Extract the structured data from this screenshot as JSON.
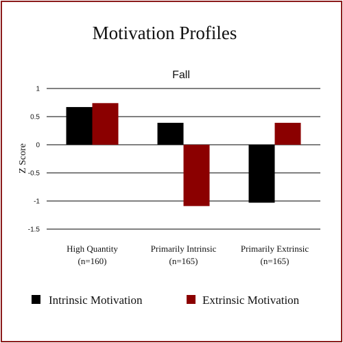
{
  "chart_data": {
    "type": "bar",
    "title": "Motivation Profiles",
    "subtitle": "Fall",
    "xlabel": "",
    "ylabel": "Z Score",
    "ylim": [
      -1.5,
      1
    ],
    "yticks": [
      1,
      0.5,
      0,
      -0.5,
      -1,
      -1.5
    ],
    "ytick_labels": [
      "1",
      "0.5",
      "0",
      "-0.5",
      "-1",
      "-1.5"
    ],
    "grid": true,
    "legend_position": "bottom",
    "categories": [
      {
        "line1": "High Quantity",
        "line2": "(n=160)"
      },
      {
        "line1": "Primarily Intrinsic",
        "line2": "(n=165)"
      },
      {
        "line1": "Primarily Extrinsic",
        "line2": "(n=165)"
      }
    ],
    "series": [
      {
        "name": "Intrinsic Motivation",
        "color": "#000000",
        "values": [
          0.67,
          0.39,
          -1.03
        ]
      },
      {
        "name": "Extrinsic Motivation",
        "color": "#8b0000",
        "values": [
          0.74,
          -1.09,
          0.39
        ]
      }
    ]
  }
}
